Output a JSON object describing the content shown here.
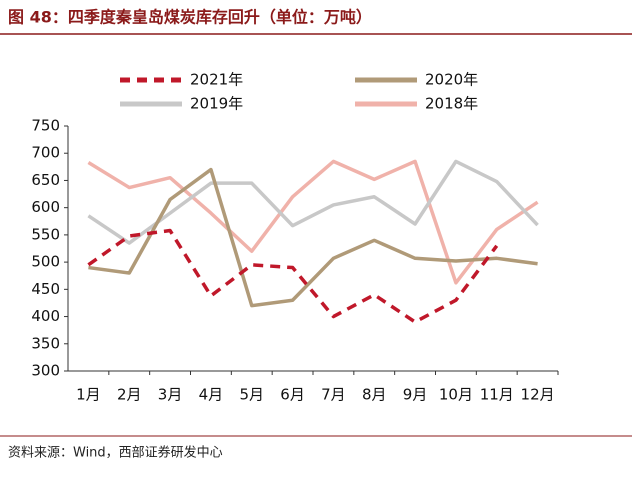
{
  "chart_data": {
    "type": "line",
    "title": "图 48：四季度秦皇岛煤炭库存回升（单位：万吨）",
    "source": "资料来源：Wind，西部证券研发中心",
    "categories": [
      "1月",
      "2月",
      "3月",
      "4月",
      "5月",
      "6月",
      "7月",
      "8月",
      "9月",
      "10月",
      "11月",
      "12月"
    ],
    "series": [
      {
        "name": "2021年",
        "color": "#c0182a",
        "dash": true,
        "values": [
          495,
          548,
          558,
          438,
          495,
          490,
          400,
          440,
          390,
          430,
          530,
          null
        ]
      },
      {
        "name": "2020年",
        "color": "#b09a78",
        "values": [
          490,
          480,
          615,
          670,
          420,
          430,
          507,
          540,
          507,
          502,
          507,
          497
        ]
      },
      {
        "name": "2019年",
        "color": "#c8c8c8",
        "values": [
          585,
          535,
          590,
          645,
          645,
          567,
          605,
          620,
          570,
          685,
          648,
          568
        ]
      },
      {
        "name": "2018年",
        "color": "#f0b2aa",
        "values": [
          683,
          637,
          655,
          590,
          520,
          620,
          685,
          652,
          685,
          462,
          560,
          610
        ]
      }
    ],
    "ylim": [
      300,
      750
    ],
    "yticks": [
      300,
      350,
      400,
      450,
      500,
      550,
      600,
      650,
      700,
      750
    ],
    "grid": false
  }
}
